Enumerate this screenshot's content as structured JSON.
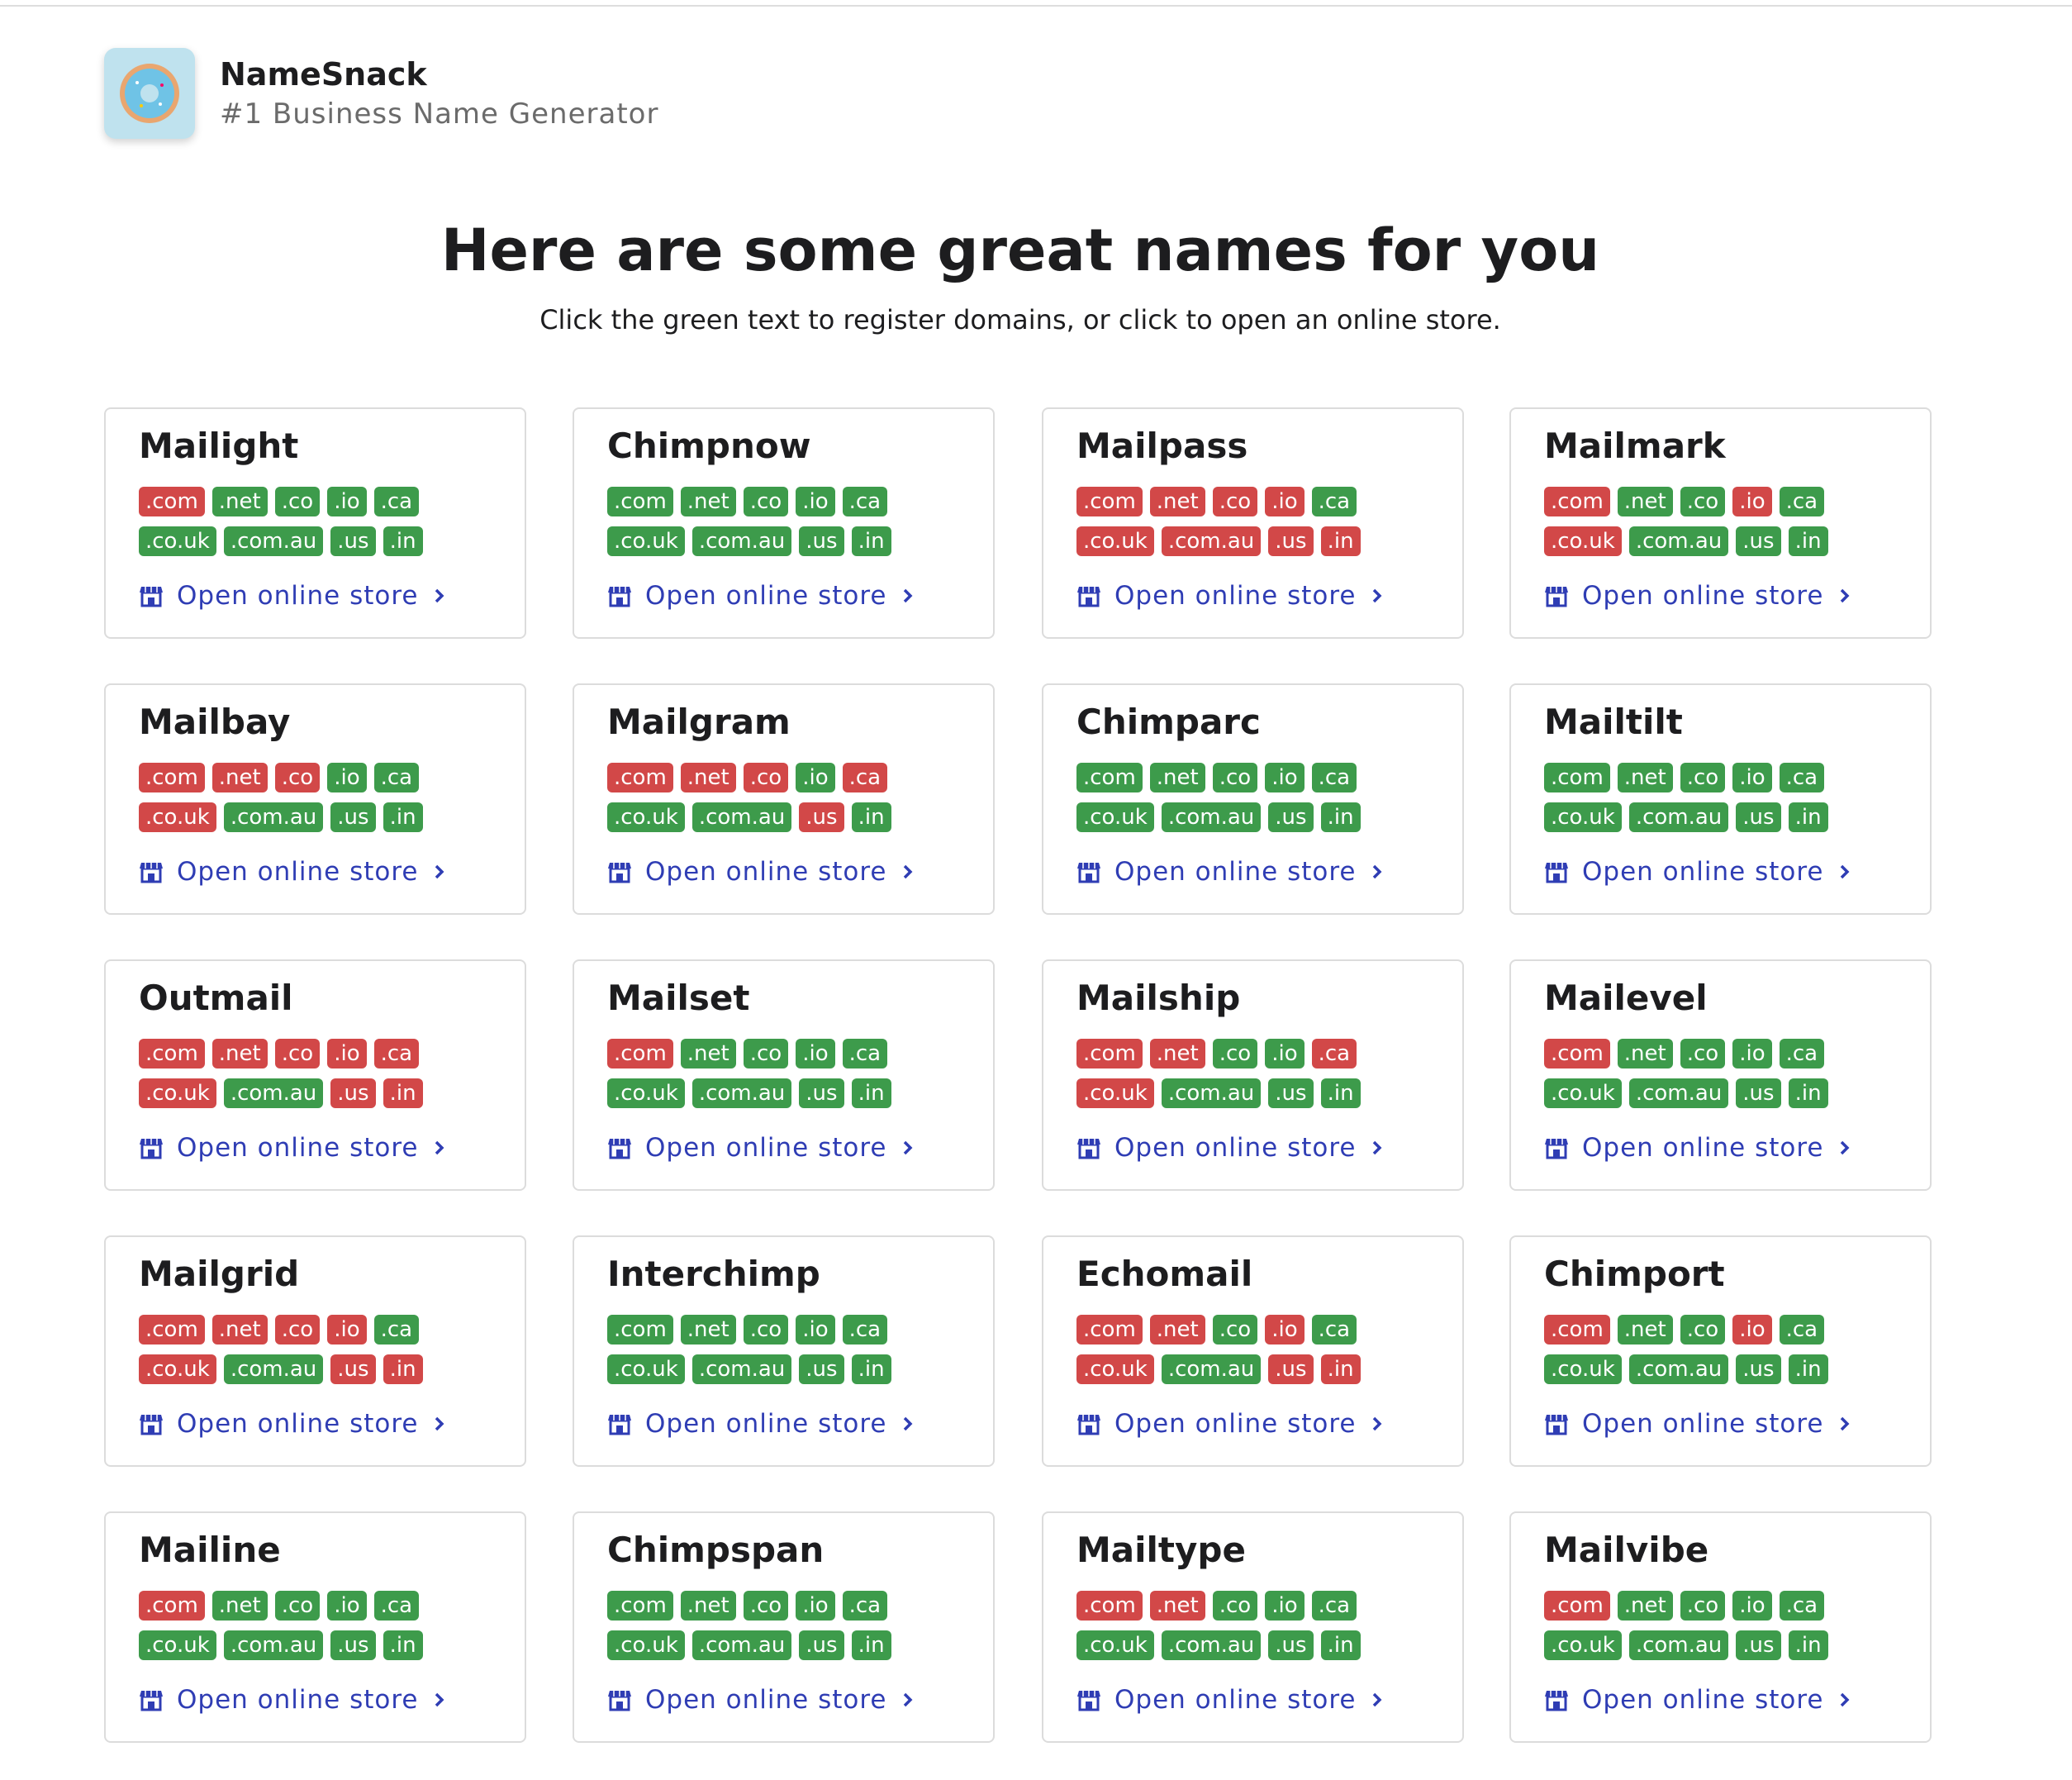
{
  "header": {
    "title": "NameSnack",
    "subtitle": "#1 Business Name Generator"
  },
  "heading": {
    "title": "Here are some great names for you",
    "subtitle": "Click the green text to register domains, or click to open an online store."
  },
  "tlds": [
    ".com",
    ".net",
    ".co",
    ".io",
    ".ca",
    ".co.uk",
    ".com.au",
    ".us",
    ".in"
  ],
  "store_link": "Open online store",
  "cards": [
    {
      "name": "Mailight",
      "available": [
        false,
        true,
        true,
        true,
        true,
        true,
        true,
        true,
        true
      ]
    },
    {
      "name": "Chimpnow",
      "available": [
        true,
        true,
        true,
        true,
        true,
        true,
        true,
        true,
        true
      ]
    },
    {
      "name": "Mailpass",
      "available": [
        false,
        false,
        false,
        false,
        true,
        false,
        false,
        false,
        false
      ]
    },
    {
      "name": "Mailmark",
      "available": [
        false,
        true,
        true,
        false,
        true,
        false,
        true,
        true,
        true
      ]
    },
    {
      "name": "Mailbay",
      "available": [
        false,
        false,
        false,
        true,
        true,
        false,
        true,
        true,
        true
      ]
    },
    {
      "name": "Mailgram",
      "available": [
        false,
        false,
        false,
        true,
        false,
        true,
        true,
        false,
        true
      ]
    },
    {
      "name": "Chimparc",
      "available": [
        true,
        true,
        true,
        true,
        true,
        true,
        true,
        true,
        true
      ]
    },
    {
      "name": "Mailtilt",
      "available": [
        true,
        true,
        true,
        true,
        true,
        true,
        true,
        true,
        true
      ]
    },
    {
      "name": "Outmail",
      "available": [
        false,
        false,
        false,
        false,
        false,
        false,
        true,
        false,
        false
      ]
    },
    {
      "name": "Mailset",
      "available": [
        false,
        true,
        true,
        true,
        true,
        true,
        true,
        true,
        true
      ]
    },
    {
      "name": "Mailship",
      "available": [
        false,
        false,
        true,
        true,
        false,
        false,
        true,
        true,
        true
      ]
    },
    {
      "name": "Mailevel",
      "available": [
        false,
        true,
        true,
        true,
        true,
        true,
        true,
        true,
        true
      ]
    },
    {
      "name": "Mailgrid",
      "available": [
        false,
        false,
        false,
        false,
        true,
        false,
        true,
        false,
        false
      ]
    },
    {
      "name": "Interchimp",
      "available": [
        true,
        true,
        true,
        true,
        true,
        true,
        true,
        true,
        true
      ]
    },
    {
      "name": "Echomail",
      "available": [
        false,
        false,
        true,
        false,
        true,
        false,
        true,
        false,
        false
      ]
    },
    {
      "name": "Chimport",
      "available": [
        false,
        true,
        true,
        false,
        true,
        true,
        true,
        true,
        true
      ]
    },
    {
      "name": "Mailine",
      "available": [
        false,
        true,
        true,
        true,
        true,
        true,
        true,
        true,
        true
      ]
    },
    {
      "name": "Chimpspan",
      "available": [
        true,
        true,
        true,
        true,
        true,
        true,
        true,
        true,
        true
      ]
    },
    {
      "name": "Mailtype",
      "available": [
        false,
        false,
        true,
        true,
        true,
        true,
        true,
        true,
        true
      ]
    },
    {
      "name": "Mailvibe",
      "available": [
        false,
        true,
        true,
        true,
        true,
        true,
        true,
        true,
        true
      ]
    }
  ]
}
